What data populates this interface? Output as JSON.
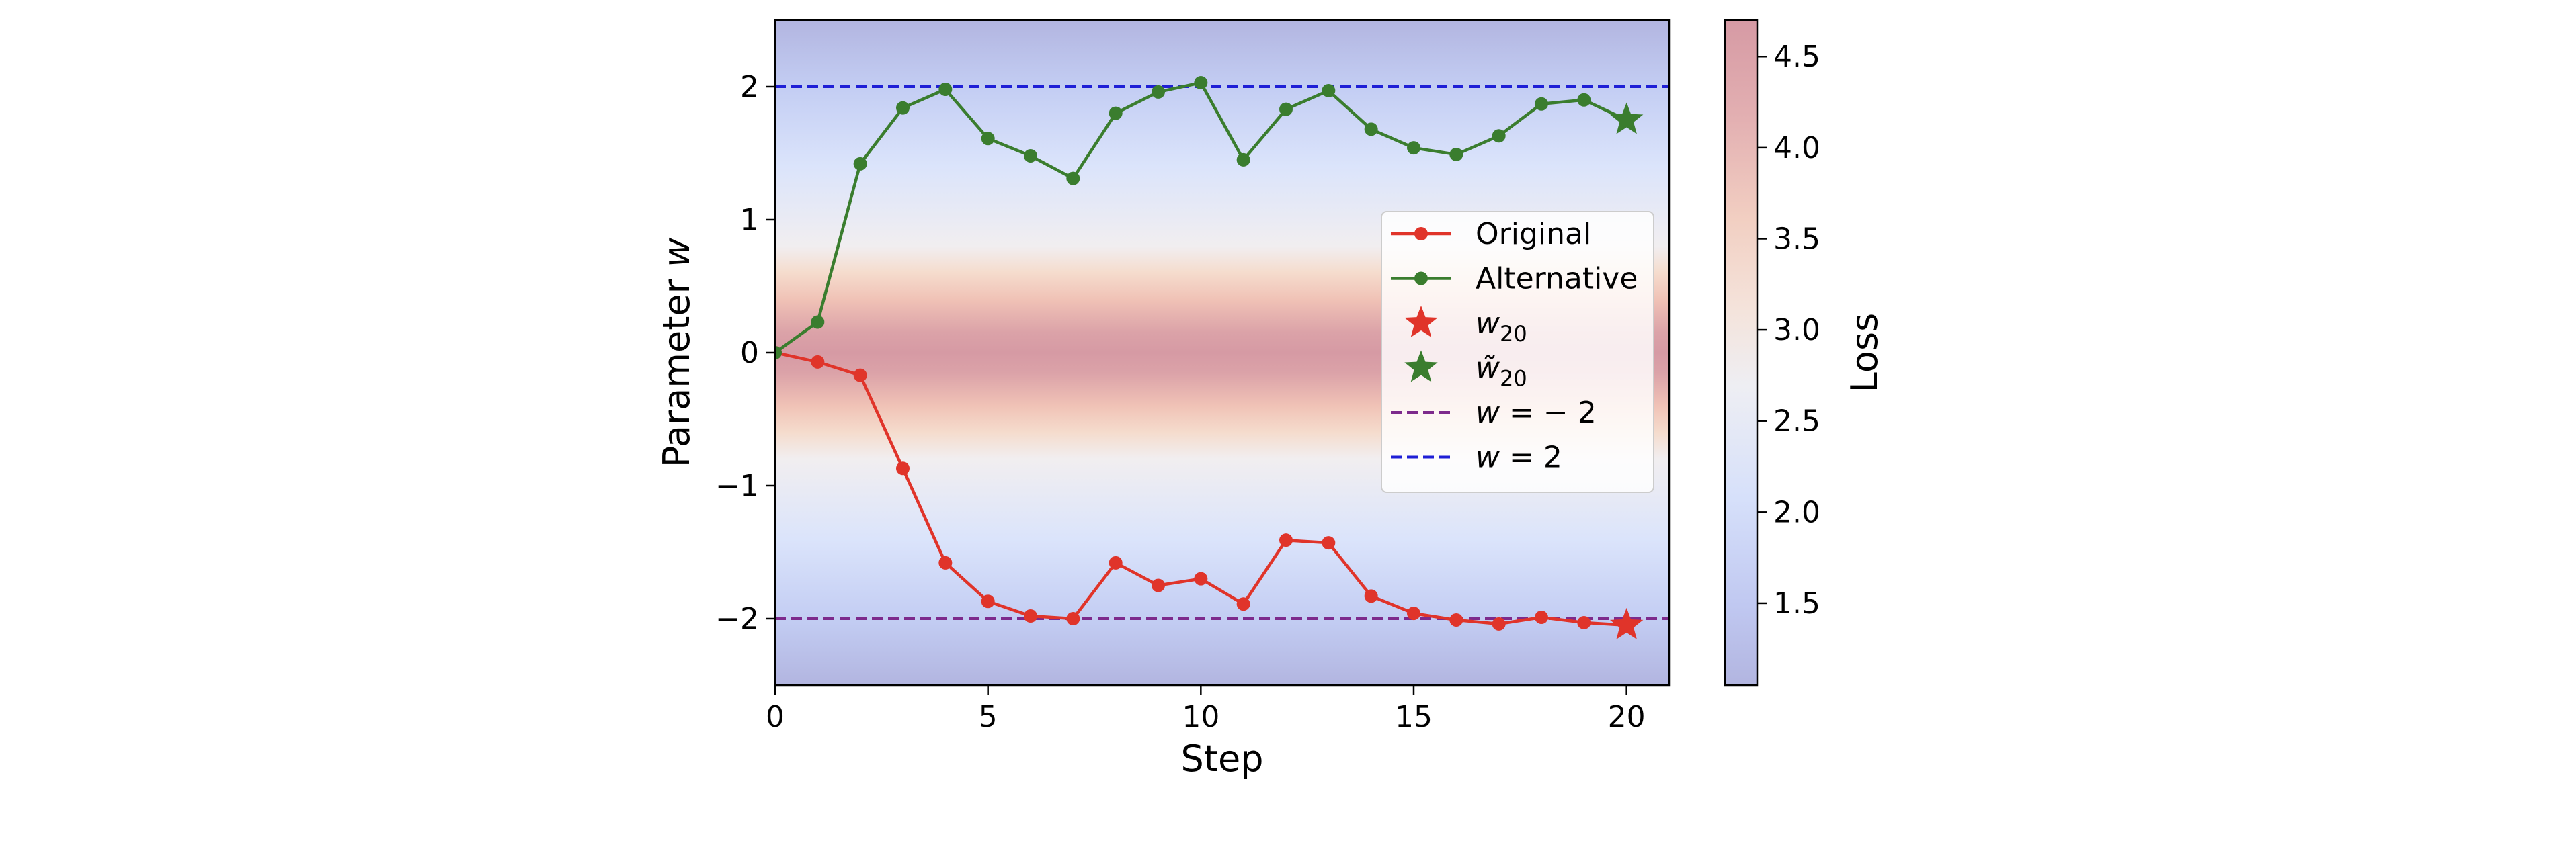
{
  "chart_data": {
    "type": "line",
    "xlabel": "Step",
    "ylabel": "Parameter w",
    "xlim": [
      0,
      21
    ],
    "ylim": [
      -2.5,
      2.5
    ],
    "x_ticks": [
      "0",
      "5",
      "10",
      "15",
      "20"
    ],
    "y_ticks": [
      "−2",
      "−1",
      "0",
      "1",
      "2"
    ],
    "grid": false,
    "legend_position": "center-right",
    "background": {
      "type": "heatmap",
      "description_of_values": "loss as a function of w, maximal near w = 0, minimal near w = ±2",
      "colormap": [
        "#b3b6e1",
        "#c9d6f6",
        "#f7f3f1",
        "#f5cdb9",
        "#d69ba5"
      ],
      "min": 1.05,
      "max": 4.7
    },
    "series": [
      {
        "name": "Original",
        "color": "#e0342a",
        "marker": "circle",
        "x": [
          0,
          1,
          2,
          3,
          4,
          5,
          6,
          7,
          8,
          9,
          10,
          11,
          12,
          13,
          14,
          15,
          16,
          17,
          18,
          19
        ],
        "y": [
          0,
          -0.07,
          -0.17,
          -0.87,
          -1.58,
          -1.87,
          -1.98,
          -2.0,
          -1.58,
          -1.75,
          -1.7,
          -1.89,
          -1.41,
          -1.43,
          -1.83,
          -1.96,
          -2.01,
          -2.04,
          -1.99,
          -2.03
        ]
      },
      {
        "name": "Alternative",
        "color": "#3a7d2e",
        "marker": "circle",
        "x": [
          0,
          1,
          2,
          3,
          4,
          5,
          6,
          7,
          8,
          9,
          10,
          11,
          12,
          13,
          14,
          15,
          16,
          17,
          18,
          19
        ],
        "y": [
          0,
          0.23,
          1.42,
          1.84,
          1.98,
          1.61,
          1.48,
          1.31,
          1.8,
          1.96,
          2.03,
          1.45,
          1.83,
          1.97,
          1.68,
          1.54,
          1.49,
          1.63,
          1.87,
          1.9
        ]
      }
    ],
    "final_points": [
      {
        "name": "w_20",
        "label_main": "w",
        "label_sub": "20",
        "tilde": false,
        "x": 20,
        "y": -2.05,
        "color": "#e0342a"
      },
      {
        "name": "w~_20",
        "label_main": "w̃",
        "label_sub": "20",
        "tilde": true,
        "x": 20,
        "y": 1.75,
        "color": "#3a7d2e"
      }
    ],
    "reference_lines": [
      {
        "label": "w = −2",
        "y": -2,
        "color": "#7d2a8c",
        "style": "dashed"
      },
      {
        "label": "w = 2",
        "y": 2,
        "color": "#1f1fd6",
        "style": "dashed"
      }
    ],
    "legend": [
      {
        "text": "Original",
        "kind": "line-marker",
        "color": "#e0342a"
      },
      {
        "text": "Alternative",
        "kind": "line-marker",
        "color": "#3a7d2e"
      },
      {
        "text_main": "w",
        "text_sub": "20",
        "kind": "star",
        "color": "#e0342a"
      },
      {
        "text_main": "w̃",
        "text_sub": "20",
        "kind": "star",
        "color": "#3a7d2e"
      },
      {
        "text": "w = − 2",
        "kind": "dashed",
        "color": "#7d2a8c"
      },
      {
        "text": "w = 2",
        "kind": "dashed",
        "color": "#1f1fd6"
      }
    ],
    "colorbar": {
      "label": "Loss",
      "ticks": [
        "1.5",
        "2.0",
        "2.5",
        "3.0",
        "3.5",
        "4.0",
        "4.5"
      ],
      "tick_values": [
        1.5,
        2.0,
        2.5,
        3.0,
        3.5,
        4.0,
        4.5
      ],
      "min": 1.05,
      "max": 4.7
    }
  }
}
